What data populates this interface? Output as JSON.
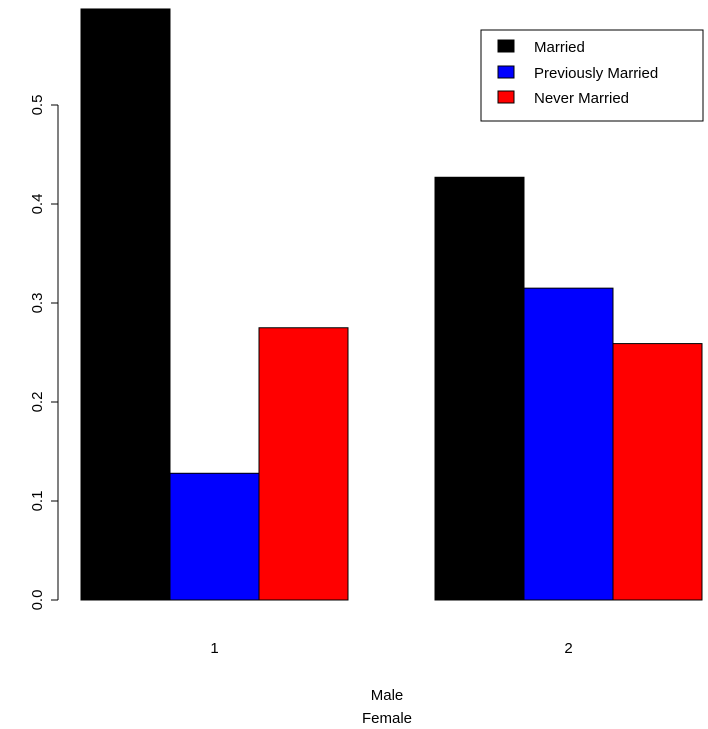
{
  "chart_data": {
    "type": "bar",
    "categories": [
      "1",
      "2"
    ],
    "series": [
      {
        "name": "Married",
        "color": "#000000",
        "values": [
          0.597,
          0.427
        ]
      },
      {
        "name": "Previously Married",
        "color": "#0000ff",
        "values": [
          0.128,
          0.315
        ]
      },
      {
        "name": "Never Married",
        "color": "#ff0000",
        "values": [
          0.275,
          0.259
        ]
      }
    ],
    "y_ticks": [
      "0.0",
      "0.1",
      "0.2",
      "0.3",
      "0.4",
      "0.5"
    ],
    "y_tick_values": [
      0,
      0.1,
      0.2,
      0.3,
      0.4,
      0.5
    ],
    "ylim": [
      0,
      0.6
    ],
    "xlabel_lines": [
      "Male",
      "Female"
    ],
    "legend_position": "top-right",
    "grid": false
  }
}
